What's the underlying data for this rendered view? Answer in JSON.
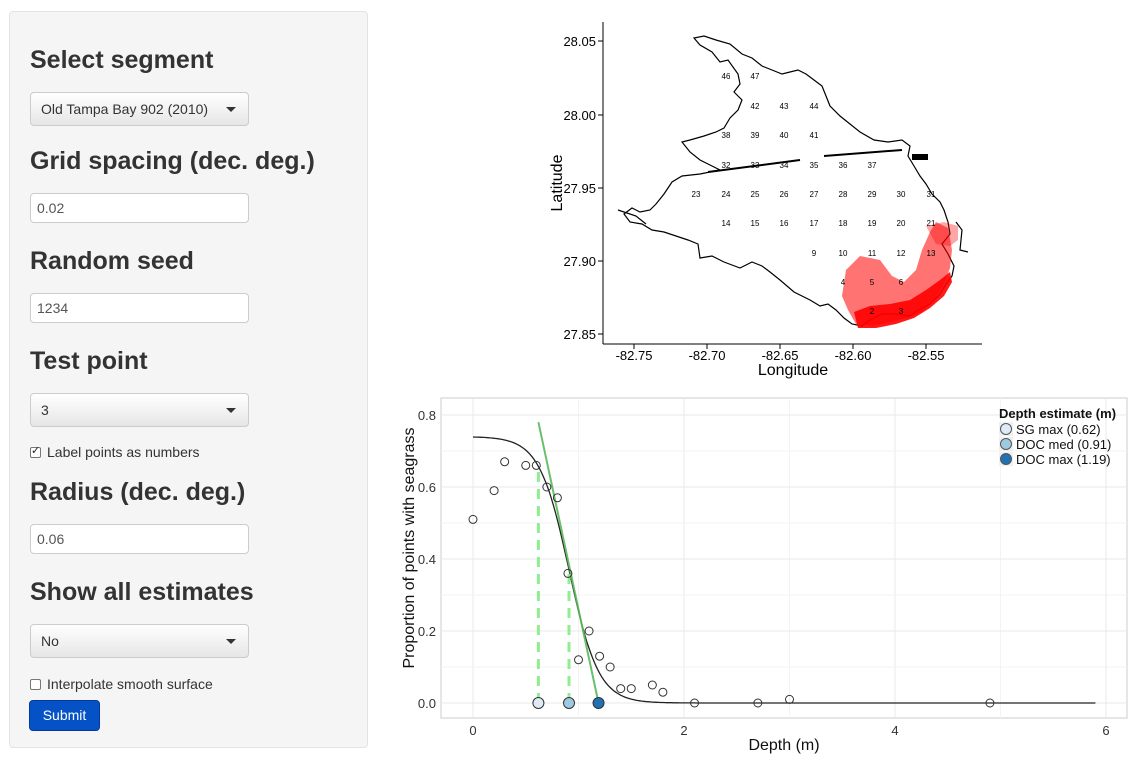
{
  "sidebar": {
    "segment_heading": "Select segment",
    "segment_value": "Old Tampa Bay 902 (2010)",
    "grid_heading": "Grid spacing (dec. deg.)",
    "grid_value": "0.02",
    "seed_heading": "Random seed",
    "seed_value": "1234",
    "test_heading": "Test point",
    "test_value": "3",
    "label_points": "Label points as numbers",
    "label_points_checked": true,
    "radius_heading": "Radius (dec. deg.)",
    "radius_value": "0.06",
    "show_heading": "Show all estimates",
    "show_value": "No",
    "interpolate": "Interpolate smooth surface",
    "interpolate_checked": false,
    "submit_label": "Submit"
  },
  "map_plot": {
    "xlabel": "Longitude",
    "ylabel": "Latitude",
    "x_ticks": [
      "-82.75",
      "-82.70",
      "-82.65",
      "-82.60",
      "-82.55"
    ],
    "y_ticks": [
      "28.05",
      "28.00",
      "27.95",
      "27.90",
      "27.85"
    ],
    "grid_labels": [
      "46",
      "47",
      "42",
      "43",
      "44",
      "38",
      "39",
      "40",
      "41",
      "32",
      "33",
      "34",
      "35",
      "36",
      "37",
      "23",
      "24",
      "25",
      "26",
      "27",
      "28",
      "29",
      "30",
      "31",
      "14",
      "15",
      "16",
      "17",
      "18",
      "19",
      "20",
      "21",
      "9",
      "10",
      "11",
      "12",
      "13",
      "4",
      "5",
      "6",
      "2",
      "3"
    ],
    "colors": {
      "points": "#ff0000",
      "shore": "#000000"
    }
  },
  "chart_data": {
    "type": "scatter",
    "xlabel": "Depth (m)",
    "ylabel": "Proportion of points with seagrass",
    "x_ticks": [
      "0",
      "2",
      "4",
      "6"
    ],
    "y_ticks": [
      "0.0",
      "0.2",
      "0.4",
      "0.6",
      "0.8"
    ],
    "xlim": [
      -0.3,
      6.2
    ],
    "ylim": [
      -0.02,
      0.83
    ],
    "points": [
      [
        0.0,
        0.51
      ],
      [
        0.2,
        0.59
      ],
      [
        0.3,
        0.67
      ],
      [
        0.5,
        0.66
      ],
      [
        0.6,
        0.66
      ],
      [
        0.7,
        0.6
      ],
      [
        0.8,
        0.57
      ],
      [
        0.9,
        0.36
      ],
      [
        1.0,
        0.12
      ],
      [
        1.1,
        0.2
      ],
      [
        1.2,
        0.13
      ],
      [
        1.3,
        0.1
      ],
      [
        1.4,
        0.04
      ],
      [
        1.5,
        0.04
      ],
      [
        1.7,
        0.05
      ],
      [
        1.8,
        0.03
      ],
      [
        2.1,
        0.0
      ],
      [
        2.7,
        0.0
      ],
      [
        3.0,
        0.01
      ],
      [
        4.9,
        0.0
      ]
    ],
    "curve": {
      "asymptote": 0.74,
      "midpoint": 0.91,
      "scale": 0.14,
      "x_end": 5.9
    },
    "fit_line": [
      [
        0.62,
        0.78
      ],
      [
        1.19,
        0.0
      ]
    ],
    "legend_title": "Depth estimate (m)",
    "estimates": [
      {
        "name": "SG max (0.62)",
        "depth": 0.62,
        "color": "#deebf7"
      },
      {
        "name": "DOC med (0.91)",
        "depth": 0.91,
        "color": "#9ecae1"
      },
      {
        "name": "DOC max (1.19)",
        "depth": 1.19,
        "color": "#2171b5"
      }
    ],
    "colors": {
      "fit": "#5cb85c",
      "dash": "#90ee90"
    }
  }
}
